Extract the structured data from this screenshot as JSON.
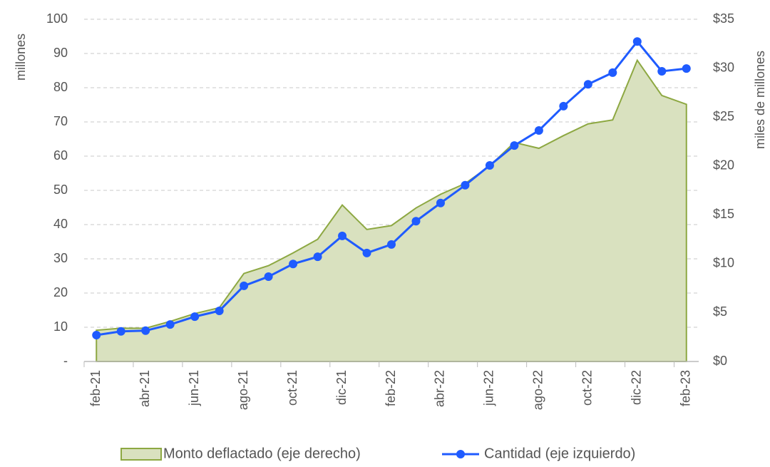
{
  "chart_data": {
    "type": "line",
    "y_label": "millones",
    "y2_label": "miles de millones",
    "categories": [
      "feb-21",
      null,
      "abr-21",
      null,
      "jun-21",
      null,
      "ago-21",
      null,
      "oct-21",
      null,
      "dic-21",
      null,
      "feb-22",
      null,
      "abr-22",
      null,
      "jun-22",
      null,
      "ago-22",
      null,
      "oct-22",
      null,
      "dic-22",
      null,
      "feb-23"
    ],
    "series": [
      {
        "name": "Monto deflactado (eje derecho)",
        "type": "area",
        "axis": "y2",
        "color": "#8da842",
        "fill": "#d9e1bf",
        "values": [
          3.2,
          3.4,
          3.4,
          4.1,
          4.9,
          5.5,
          9.0,
          9.8,
          11.1,
          12.5,
          16.0,
          13.5,
          13.9,
          15.7,
          17.1,
          18.2,
          20.0,
          22.4,
          21.8,
          23.1,
          24.3,
          24.7,
          30.8,
          27.2,
          26.3
        ]
      },
      {
        "name": "Cantidad (eje izquierdo)",
        "type": "line",
        "axis": "y",
        "color": "#1f5bff",
        "values": [
          7.7,
          8.8,
          9.0,
          10.8,
          13.1,
          14.8,
          22.1,
          24.8,
          28.5,
          30.6,
          36.7,
          31.7,
          34.2,
          41.0,
          46.3,
          51.5,
          57.3,
          63.1,
          67.5,
          74.6,
          81.0,
          84.4,
          93.5,
          84.8,
          85.6
        ]
      }
    ],
    "ylim": [
      0,
      100
    ],
    "yticks": [
      {
        "value": 0,
        "label": "-"
      },
      10,
      20,
      30,
      40,
      50,
      60,
      70,
      80,
      90,
      100
    ],
    "y2lim": [
      0,
      35
    ],
    "y2ticks": [
      {
        "value": 0,
        "label": "$0"
      },
      {
        "value": 5,
        "label": "$5"
      },
      {
        "value": 10,
        "label": "$10"
      },
      {
        "value": 15,
        "label": "$15"
      },
      {
        "value": 20,
        "label": "$20"
      },
      {
        "value": 25,
        "label": "$25"
      },
      {
        "value": 30,
        "label": "$30"
      },
      {
        "value": 35,
        "label": "$35"
      }
    ],
    "grid": true,
    "legend": "bottom"
  }
}
